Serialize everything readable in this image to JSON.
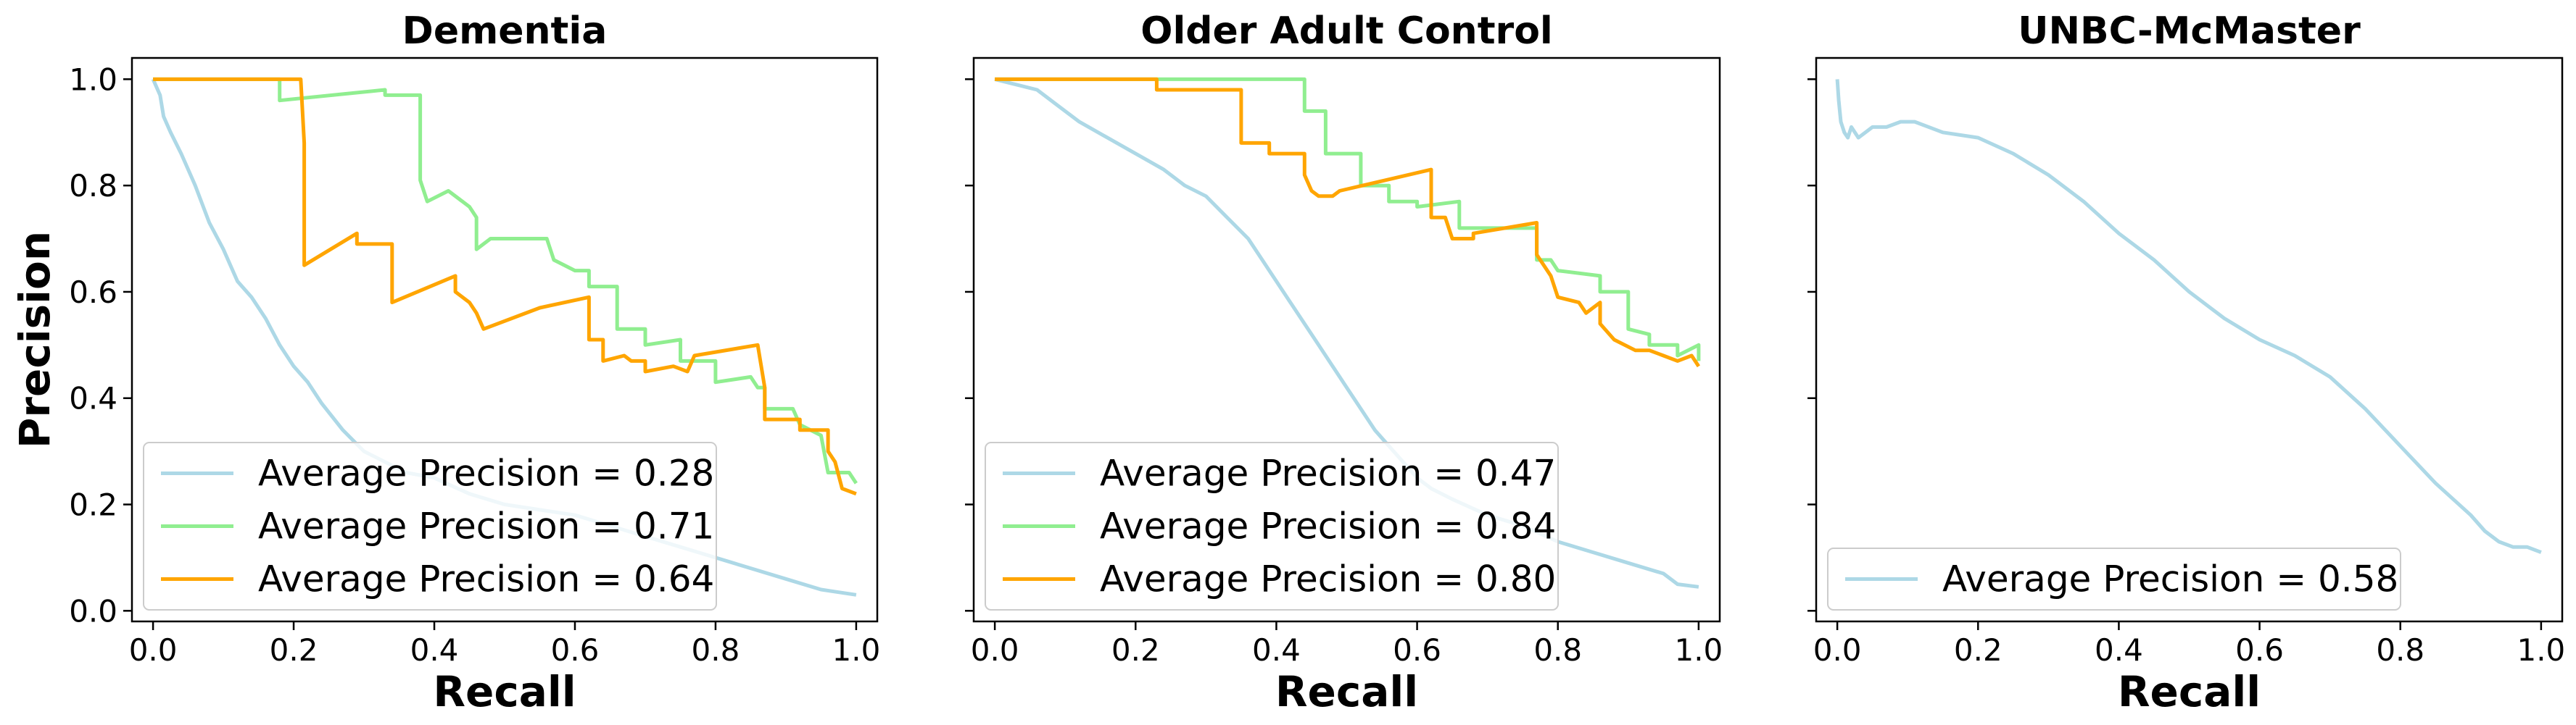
{
  "chart_data": [
    {
      "type": "line",
      "title": "Dementia",
      "xlabel": "Recall",
      "ylabel": "Precision",
      "xlim": [
        -0.03,
        1.03
      ],
      "ylim": [
        -0.02,
        1.04
      ],
      "xticks": [
        "0.0",
        "0.2",
        "0.4",
        "0.6",
        "0.8",
        "1.0"
      ],
      "yticks": [
        "0.0",
        "0.2",
        "0.4",
        "0.6",
        "0.8",
        "1.0"
      ],
      "legend_position": "lower-left",
      "series": [
        {
          "name": "Average Precision = 0.28",
          "color": "#add8e6",
          "points": [
            [
              0.0,
              1.0
            ],
            [
              0.01,
              0.97
            ],
            [
              0.015,
              0.93
            ],
            [
              0.025,
              0.9
            ],
            [
              0.04,
              0.86
            ],
            [
              0.06,
              0.8
            ],
            [
              0.08,
              0.73
            ],
            [
              0.1,
              0.68
            ],
            [
              0.12,
              0.62
            ],
            [
              0.14,
              0.59
            ],
            [
              0.16,
              0.55
            ],
            [
              0.18,
              0.5
            ],
            [
              0.2,
              0.46
            ],
            [
              0.22,
              0.43
            ],
            [
              0.24,
              0.39
            ],
            [
              0.27,
              0.34
            ],
            [
              0.3,
              0.3
            ],
            [
              0.33,
              0.28
            ],
            [
              0.36,
              0.26
            ],
            [
              0.4,
              0.25
            ],
            [
              0.45,
              0.22
            ],
            [
              0.5,
              0.2
            ],
            [
              0.55,
              0.19
            ],
            [
              0.6,
              0.18
            ],
            [
              0.65,
              0.16
            ],
            [
              0.7,
              0.14
            ],
            [
              0.75,
              0.12
            ],
            [
              0.8,
              0.1
            ],
            [
              0.85,
              0.08
            ],
            [
              0.9,
              0.06
            ],
            [
              0.95,
              0.04
            ],
            [
              1.0,
              0.03
            ]
          ]
        },
        {
          "name": "Average Precision = 0.71",
          "color": "#90ee90",
          "points": [
            [
              0.0,
              1.0
            ],
            [
              0.18,
              1.0
            ],
            [
              0.18,
              0.96
            ],
            [
              0.33,
              0.98
            ],
            [
              0.33,
              0.97
            ],
            [
              0.38,
              0.97
            ],
            [
              0.38,
              0.81
            ],
            [
              0.39,
              0.77
            ],
            [
              0.42,
              0.79
            ],
            [
              0.45,
              0.76
            ],
            [
              0.46,
              0.74
            ],
            [
              0.46,
              0.68
            ],
            [
              0.48,
              0.7
            ],
            [
              0.56,
              0.7
            ],
            [
              0.57,
              0.66
            ],
            [
              0.6,
              0.64
            ],
            [
              0.62,
              0.64
            ],
            [
              0.62,
              0.61
            ],
            [
              0.66,
              0.61
            ],
            [
              0.66,
              0.53
            ],
            [
              0.7,
              0.53
            ],
            [
              0.7,
              0.5
            ],
            [
              0.75,
              0.51
            ],
            [
              0.75,
              0.47
            ],
            [
              0.8,
              0.47
            ],
            [
              0.8,
              0.43
            ],
            [
              0.85,
              0.44
            ],
            [
              0.86,
              0.42
            ],
            [
              0.87,
              0.42
            ],
            [
              0.87,
              0.38
            ],
            [
              0.91,
              0.38
            ],
            [
              0.92,
              0.35
            ],
            [
              0.95,
              0.33
            ],
            [
              0.96,
              0.26
            ],
            [
              0.99,
              0.26
            ],
            [
              1.0,
              0.24
            ]
          ]
        },
        {
          "name": "Average Precision = 0.64",
          "color": "#ffa500",
          "points": [
            [
              0.0,
              1.0
            ],
            [
              0.21,
              1.0
            ],
            [
              0.215,
              0.88
            ],
            [
              0.215,
              0.65
            ],
            [
              0.29,
              0.71
            ],
            [
              0.29,
              0.69
            ],
            [
              0.34,
              0.69
            ],
            [
              0.34,
              0.58
            ],
            [
              0.43,
              0.63
            ],
            [
              0.43,
              0.6
            ],
            [
              0.45,
              0.58
            ],
            [
              0.46,
              0.56
            ],
            [
              0.47,
              0.53
            ],
            [
              0.55,
              0.57
            ],
            [
              0.62,
              0.59
            ],
            [
              0.62,
              0.51
            ],
            [
              0.64,
              0.51
            ],
            [
              0.64,
              0.47
            ],
            [
              0.67,
              0.48
            ],
            [
              0.68,
              0.47
            ],
            [
              0.7,
              0.47
            ],
            [
              0.7,
              0.45
            ],
            [
              0.74,
              0.46
            ],
            [
              0.76,
              0.45
            ],
            [
              0.77,
              0.48
            ],
            [
              0.86,
              0.5
            ],
            [
              0.87,
              0.42
            ],
            [
              0.87,
              0.36
            ],
            [
              0.92,
              0.36
            ],
            [
              0.92,
              0.34
            ],
            [
              0.96,
              0.34
            ],
            [
              0.96,
              0.3
            ],
            [
              0.97,
              0.28
            ],
            [
              0.98,
              0.23
            ],
            [
              1.0,
              0.22
            ]
          ]
        }
      ]
    },
    {
      "type": "line",
      "title": "Older Adult Control",
      "xlabel": "Recall",
      "ylabel": "",
      "xlim": [
        -0.03,
        1.03
      ],
      "ylim": [
        -0.02,
        1.04
      ],
      "xticks": [
        "0.0",
        "0.2",
        "0.4",
        "0.6",
        "0.8",
        "1.0"
      ],
      "yticks": [],
      "legend_position": "lower-left",
      "series": [
        {
          "name": "Average Precision = 0.47",
          "color": "#add8e6",
          "points": [
            [
              0.0,
              1.0
            ],
            [
              0.03,
              0.99
            ],
            [
              0.06,
              0.98
            ],
            [
              0.09,
              0.95
            ],
            [
              0.12,
              0.92
            ],
            [
              0.16,
              0.89
            ],
            [
              0.2,
              0.86
            ],
            [
              0.24,
              0.83
            ],
            [
              0.27,
              0.8
            ],
            [
              0.3,
              0.78
            ],
            [
              0.33,
              0.74
            ],
            [
              0.36,
              0.7
            ],
            [
              0.38,
              0.66
            ],
            [
              0.4,
              0.62
            ],
            [
              0.42,
              0.58
            ],
            [
              0.44,
              0.54
            ],
            [
              0.46,
              0.5
            ],
            [
              0.48,
              0.46
            ],
            [
              0.5,
              0.42
            ],
            [
              0.52,
              0.38
            ],
            [
              0.54,
              0.34
            ],
            [
              0.56,
              0.31
            ],
            [
              0.58,
              0.28
            ],
            [
              0.6,
              0.25
            ],
            [
              0.62,
              0.23
            ],
            [
              0.65,
              0.21
            ],
            [
              0.7,
              0.18
            ],
            [
              0.75,
              0.16
            ],
            [
              0.8,
              0.13
            ],
            [
              0.85,
              0.11
            ],
            [
              0.9,
              0.09
            ],
            [
              0.95,
              0.07
            ],
            [
              0.97,
              0.05
            ],
            [
              1.0,
              0.045
            ]
          ]
        },
        {
          "name": "Average Precision = 0.84",
          "color": "#90ee90",
          "points": [
            [
              0.0,
              1.0
            ],
            [
              0.44,
              1.0
            ],
            [
              0.44,
              0.94
            ],
            [
              0.47,
              0.94
            ],
            [
              0.47,
              0.86
            ],
            [
              0.52,
              0.86
            ],
            [
              0.52,
              0.8
            ],
            [
              0.56,
              0.8
            ],
            [
              0.56,
              0.77
            ],
            [
              0.6,
              0.77
            ],
            [
              0.6,
              0.76
            ],
            [
              0.66,
              0.77
            ],
            [
              0.66,
              0.72
            ],
            [
              0.69,
              0.72
            ],
            [
              0.69,
              0.72
            ],
            [
              0.73,
              0.72
            ],
            [
              0.77,
              0.72
            ],
            [
              0.77,
              0.66
            ],
            [
              0.79,
              0.66
            ],
            [
              0.8,
              0.64
            ],
            [
              0.86,
              0.63
            ],
            [
              0.86,
              0.6
            ],
            [
              0.9,
              0.6
            ],
            [
              0.9,
              0.53
            ],
            [
              0.93,
              0.52
            ],
            [
              0.93,
              0.5
            ],
            [
              0.97,
              0.5
            ],
            [
              0.97,
              0.48
            ],
            [
              1.0,
              0.5
            ],
            [
              1.0,
              0.47
            ]
          ]
        },
        {
          "name": "Average Precision = 0.80",
          "color": "#ffa500",
          "points": [
            [
              0.0,
              1.0
            ],
            [
              0.23,
              1.0
            ],
            [
              0.23,
              0.98
            ],
            [
              0.35,
              0.98
            ],
            [
              0.35,
              0.88
            ],
            [
              0.39,
              0.88
            ],
            [
              0.39,
              0.86
            ],
            [
              0.44,
              0.86
            ],
            [
              0.44,
              0.82
            ],
            [
              0.45,
              0.79
            ],
            [
              0.46,
              0.78
            ],
            [
              0.48,
              0.78
            ],
            [
              0.49,
              0.79
            ],
            [
              0.62,
              0.83
            ],
            [
              0.62,
              0.74
            ],
            [
              0.64,
              0.74
            ],
            [
              0.65,
              0.7
            ],
            [
              0.68,
              0.7
            ],
            [
              0.68,
              0.71
            ],
            [
              0.77,
              0.73
            ],
            [
              0.77,
              0.67
            ],
            [
              0.79,
              0.63
            ],
            [
              0.8,
              0.59
            ],
            [
              0.83,
              0.58
            ],
            [
              0.84,
              0.56
            ],
            [
              0.86,
              0.58
            ],
            [
              0.86,
              0.54
            ],
            [
              0.88,
              0.51
            ],
            [
              0.91,
              0.49
            ],
            [
              0.93,
              0.49
            ],
            [
              0.95,
              0.48
            ],
            [
              0.97,
              0.47
            ],
            [
              0.99,
              0.48
            ],
            [
              1.0,
              0.46
            ]
          ]
        }
      ]
    },
    {
      "type": "line",
      "title": "UNBC-McMaster",
      "xlabel": "Recall",
      "ylabel": "",
      "xlim": [
        -0.03,
        1.03
      ],
      "ylim": [
        -0.02,
        1.04
      ],
      "xticks": [
        "0.0",
        "0.2",
        "0.4",
        "0.6",
        "0.8",
        "1.0"
      ],
      "yticks": [],
      "legend_position": "lower-left",
      "series": [
        {
          "name": "Average Precision = 0.58",
          "color": "#add8e6",
          "points": [
            [
              0.0,
              1.0
            ],
            [
              0.002,
              0.96
            ],
            [
              0.005,
              0.92
            ],
            [
              0.01,
              0.9
            ],
            [
              0.015,
              0.89
            ],
            [
              0.02,
              0.91
            ],
            [
              0.03,
              0.89
            ],
            [
              0.04,
              0.9
            ],
            [
              0.05,
              0.91
            ],
            [
              0.07,
              0.91
            ],
            [
              0.09,
              0.92
            ],
            [
              0.11,
              0.92
            ],
            [
              0.15,
              0.9
            ],
            [
              0.2,
              0.89
            ],
            [
              0.25,
              0.86
            ],
            [
              0.3,
              0.82
            ],
            [
              0.35,
              0.77
            ],
            [
              0.4,
              0.71
            ],
            [
              0.45,
              0.66
            ],
            [
              0.5,
              0.6
            ],
            [
              0.55,
              0.55
            ],
            [
              0.6,
              0.51
            ],
            [
              0.65,
              0.48
            ],
            [
              0.7,
              0.44
            ],
            [
              0.75,
              0.38
            ],
            [
              0.8,
              0.31
            ],
            [
              0.85,
              0.24
            ],
            [
              0.9,
              0.18
            ],
            [
              0.92,
              0.15
            ],
            [
              0.94,
              0.13
            ],
            [
              0.96,
              0.12
            ],
            [
              0.98,
              0.12
            ],
            [
              1.0,
              0.11
            ]
          ]
        }
      ]
    }
  ]
}
